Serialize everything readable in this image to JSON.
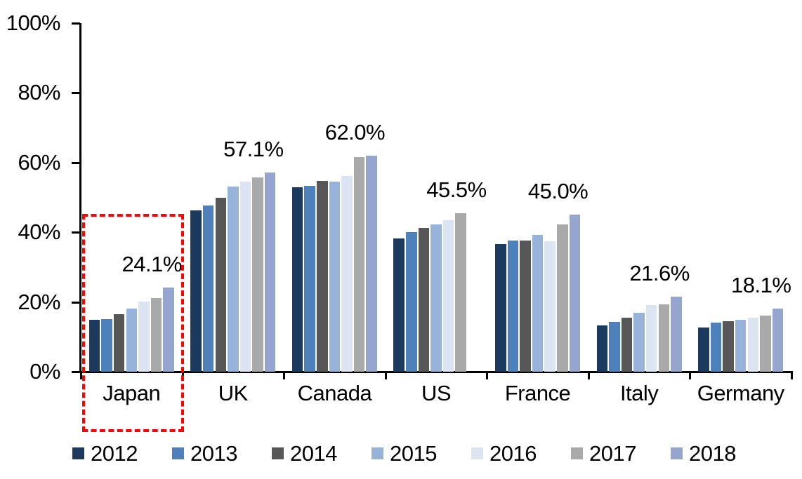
{
  "chart_data": {
    "type": "bar",
    "title": "",
    "categories": [
      "Japan",
      "UK",
      "Canada",
      "US",
      "France",
      "Italy",
      "Germany"
    ],
    "series": [
      {
        "name": "2012",
        "color": "#1C3A5E",
        "values": [
          14.8,
          46.3,
          53.0,
          38.2,
          36.6,
          13.3,
          12.6
        ]
      },
      {
        "name": "2013",
        "color": "#4E80BC",
        "values": [
          15.1,
          47.7,
          53.4,
          40.1,
          37.7,
          14.2,
          14.1
        ]
      },
      {
        "name": "2014",
        "color": "#575757",
        "values": [
          16.5,
          49.9,
          54.8,
          41.2,
          37.6,
          15.4,
          14.4
        ]
      },
      {
        "name": "2015",
        "color": "#97B3DA",
        "values": [
          18.1,
          53.1,
          54.5,
          42.2,
          39.2,
          16.9,
          14.8
        ]
      },
      {
        "name": "2016",
        "color": "#DBE4F0",
        "values": [
          20.1,
          54.6,
          56.2,
          43.5,
          37.4,
          19.1,
          15.4
        ]
      },
      {
        "name": "2017",
        "color": "#A9A9A9",
        "values": [
          21.2,
          55.8,
          61.6,
          45.5,
          42.3,
          19.3,
          16.1
        ]
      },
      {
        "name": "2018",
        "color": "#94A6CE",
        "values": [
          24.1,
          57.1,
          62.0,
          null,
          45.0,
          21.6,
          18.1
        ]
      }
    ],
    "y_axis": {
      "min": 0,
      "max": 100,
      "tick_step": 20,
      "tick_labels": [
        "0%",
        "20%",
        "40%",
        "60%",
        "80%",
        "100%"
      ],
      "grid": false
    },
    "data_labels": [
      {
        "category": "Japan",
        "series": "2018",
        "text": "24.1%"
      },
      {
        "category": "UK",
        "series": "2018",
        "text": "57.1%"
      },
      {
        "category": "Canada",
        "series": "2018",
        "text": "62.0%"
      },
      {
        "category": "US",
        "series": "2017",
        "text": "45.5%"
      },
      {
        "category": "France",
        "series": "2018",
        "text": "45.0%"
      },
      {
        "category": "Italy",
        "series": "2018",
        "text": "21.6%"
      },
      {
        "category": "Germany",
        "series": "2018",
        "text": "18.1%"
      }
    ],
    "legend": {
      "position": "bottom",
      "entries": [
        "2012",
        "2013",
        "2014",
        "2015",
        "2016",
        "2017",
        "2018"
      ]
    },
    "annotations": [
      {
        "type": "highlight-box",
        "target": "Japan",
        "color": "#FF0000",
        "style": "dashed"
      }
    ]
  }
}
